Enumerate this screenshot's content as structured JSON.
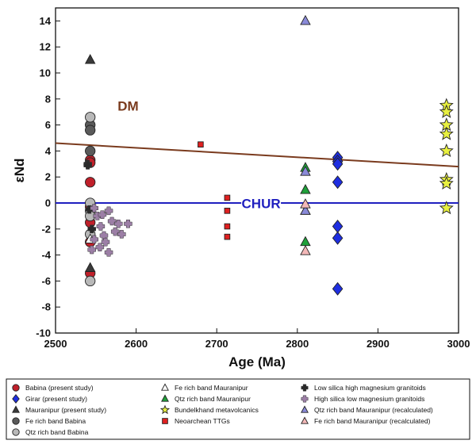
{
  "chart_data": {
    "type": "scatter",
    "xlabel": "Age (Ma)",
    "ylabel": "εNd",
    "xlim": [
      2500,
      3000
    ],
    "ylim": [
      -10,
      15
    ],
    "x_ticks": [
      2500,
      2600,
      2700,
      2800,
      2900,
      3000
    ],
    "y_ticks": [
      -10,
      -8,
      -6,
      -4,
      -2,
      0,
      2,
      4,
      6,
      8,
      10,
      12,
      14
    ],
    "grid": false,
    "legend_position": "bottom",
    "lines": [
      {
        "label": "DM",
        "color": "#7a3b1e",
        "x": [
          2500,
          3000
        ],
        "y": [
          4.6,
          2.8
        ]
      },
      {
        "label": "CHUR",
        "color": "#1f1fbf",
        "x": [
          2500,
          3000
        ],
        "y": [
          0,
          0
        ]
      }
    ],
    "series": [
      {
        "name": "Babina (present study)",
        "marker": "circle",
        "color": "#c0202a",
        "points": [
          [
            2543,
            3.3
          ],
          [
            2543,
            3.1
          ],
          [
            2543,
            1.6
          ],
          [
            2543,
            -0.3
          ],
          [
            2543,
            -1.5
          ],
          [
            2543,
            -3.0
          ],
          [
            2543,
            -5.4
          ]
        ]
      },
      {
        "name": "Girar (present study)",
        "marker": "diamond",
        "color": "#1e2ee0",
        "points": [
          [
            2850,
            3.5
          ],
          [
            2850,
            3.2
          ],
          [
            2850,
            3.0
          ],
          [
            2850,
            1.6
          ],
          [
            2850,
            -1.8
          ],
          [
            2850,
            -2.7
          ],
          [
            2850,
            -6.6
          ]
        ]
      },
      {
        "name": "Mauranipur (present study)",
        "marker": "triangle",
        "color": "#3a3a3a",
        "points": [
          [
            2543,
            11.0
          ],
          [
            2543,
            -5.0
          ]
        ]
      },
      {
        "name": "Fe rich band Babina",
        "marker": "circle",
        "color": "#5a5a5a",
        "points": [
          [
            2543,
            6.0
          ],
          [
            2543,
            5.6
          ],
          [
            2543,
            4.0
          ]
        ]
      },
      {
        "name": "Qtz rich band Babina",
        "marker": "circle",
        "color": "#b8b8b8",
        "points": [
          [
            2543,
            6.6
          ],
          [
            2543,
            0.0
          ],
          [
            2543,
            -0.6
          ],
          [
            2543,
            -1.0
          ],
          [
            2543,
            -2.4
          ],
          [
            2543,
            -6.0
          ]
        ]
      },
      {
        "name": "Fe rich band Mauranipur",
        "marker": "triangle",
        "color": "#ffffff",
        "points": [
          [
            2543,
            -2.8
          ]
        ]
      },
      {
        "name": "Qtz rich band Mauranipur",
        "marker": "triangle",
        "color": "#1fa03a",
        "points": [
          [
            2810,
            2.7
          ],
          [
            2810,
            1.0
          ],
          [
            2810,
            -0.6
          ],
          [
            2810,
            -3.0
          ]
        ]
      },
      {
        "name": "Bundelkhand metavolcanics",
        "marker": "star",
        "color": "#e8f040",
        "points": [
          [
            2985,
            7.5
          ],
          [
            2985,
            7.0
          ],
          [
            2985,
            6.0
          ],
          [
            2985,
            5.3
          ],
          [
            2985,
            4.0
          ],
          [
            2985,
            1.8
          ],
          [
            2985,
            1.5
          ],
          [
            2985,
            -0.4
          ]
        ]
      },
      {
        "name": "Neoarchean TTGs",
        "marker": "square",
        "color": "#e02020",
        "points": [
          [
            2680,
            4.5
          ],
          [
            2713,
            0.4
          ],
          [
            2713,
            -0.6
          ],
          [
            2713,
            -1.8
          ],
          [
            2713,
            -2.6
          ]
        ]
      },
      {
        "name": "Low silica high magnesium granitoids",
        "marker": "plus",
        "color": "#2a2a2a",
        "points": [
          [
            2540,
            3.0
          ],
          [
            2540,
            2.9
          ],
          [
            2542,
            -0.5
          ],
          [
            2545,
            -2.0
          ]
        ]
      },
      {
        "name": "High silica low magnesium granitoids",
        "marker": "plus",
        "color": "#9c7fa6",
        "points": [
          [
            2548,
            -0.4
          ],
          [
            2552,
            -1.0
          ],
          [
            2556,
            -1.8
          ],
          [
            2560,
            -2.5
          ],
          [
            2548,
            -2.8
          ],
          [
            2555,
            -3.4
          ],
          [
            2562,
            -3.0
          ],
          [
            2566,
            -3.8
          ],
          [
            2570,
            -1.4
          ],
          [
            2566,
            -0.6
          ],
          [
            2574,
            -2.2
          ],
          [
            2578,
            -1.6
          ],
          [
            2582,
            -2.4
          ],
          [
            2590,
            -1.6
          ],
          [
            2558,
            -0.9
          ],
          [
            2545,
            -3.6
          ]
        ]
      },
      {
        "name": "Qtz rich band Mauranipur (recalculated)",
        "marker": "triangle",
        "color": "#8a8ad8",
        "points": [
          [
            2810,
            14.0
          ],
          [
            2810,
            2.4
          ],
          [
            2810,
            -0.6
          ]
        ]
      },
      {
        "name": "Fe rich band Mauranipur (recalculated)",
        "marker": "triangle",
        "color": "#f3b8b8",
        "points": [
          [
            2810,
            -0.1
          ],
          [
            2810,
            -3.7
          ]
        ]
      }
    ]
  }
}
